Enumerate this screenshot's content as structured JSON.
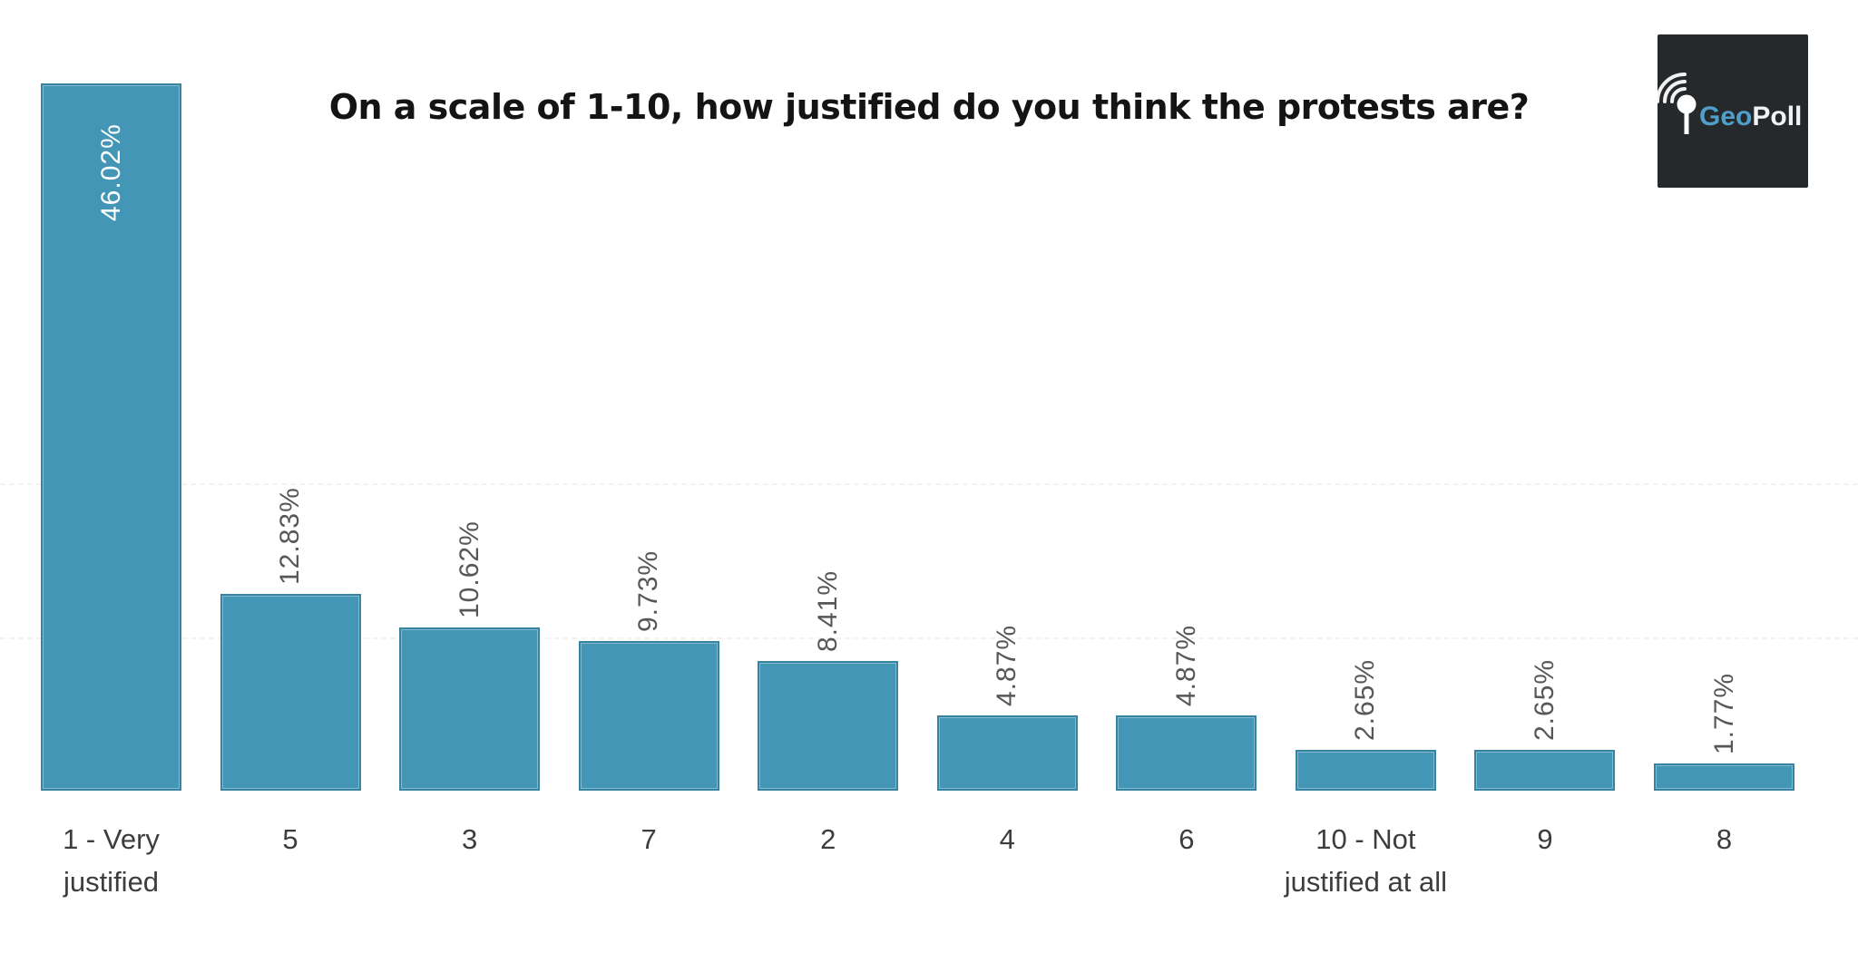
{
  "title": "On a scale of 1-10, how justified do you think the protests are?",
  "logo": {
    "name": "GeoPoll",
    "text_geo": "Geo",
    "text_poll": "Poll",
    "bg_color": "#26292b",
    "geo_color": "#4f9fca",
    "poll_color": "#f2f2f2"
  },
  "colors": {
    "bar_fill": "#4396b6",
    "data_label_gray": "#575757",
    "data_label_inside": "#ffffff",
    "category_label": "#3d3d40",
    "title_color": "#141414",
    "background": "#ffffff"
  },
  "chart_data": {
    "type": "bar",
    "title": "On a scale of 1-10, how justified do you think the protests are?",
    "categories": [
      "1 - Very justified",
      "5",
      "3",
      "7",
      "2",
      "4",
      "6",
      "10 - Not justified at all",
      "9",
      "8"
    ],
    "values": [
      46.02,
      12.83,
      10.62,
      9.73,
      8.41,
      4.87,
      4.87,
      2.65,
      2.65,
      1.77
    ],
    "labels": [
      "46.02%",
      "12.83%",
      "10.62%",
      "9.73%",
      "8.41%",
      "4.87%",
      "4.87%",
      "2.65%",
      "2.65%",
      "1.77%"
    ],
    "xlabel": "",
    "ylabel": "",
    "ylim": [
      0,
      50
    ],
    "grid": false,
    "legend": false,
    "bar_color": "#4396b6",
    "data_label_rotation": -90,
    "data_label_position": "outside-top, inside-top for first bar",
    "sort_order": "descending by value"
  }
}
